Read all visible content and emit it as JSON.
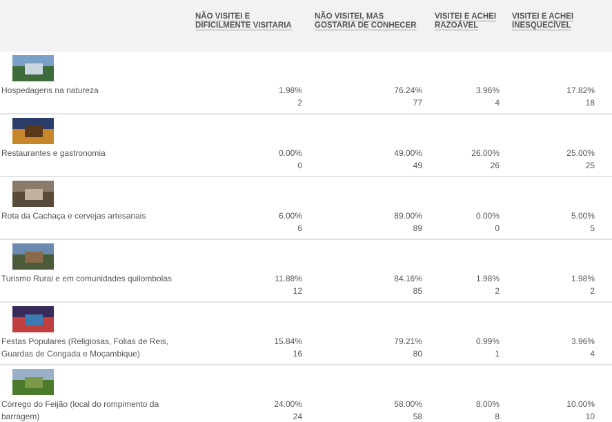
{
  "table": {
    "headers": [
      "NÃO VISITEI E DIFICILMENTE VISITARIA",
      "NÃO VISITEI, MAS GOSTARIA DE CONHECER",
      "VISITEI E ACHEI RAZOÁVEL",
      "VISITEI E ACHEI INESQUECÍVEL"
    ],
    "rows": [
      {
        "label": "Hospedagens na natureza",
        "cells": [
          [
            "1.98%",
            2
          ],
          [
            "76.24%",
            77
          ],
          [
            "3.96%",
            4
          ],
          [
            "17.82%",
            18
          ]
        ]
      },
      {
        "label": "Restaurantes e gastronomia",
        "cells": [
          [
            "0.00%",
            0
          ],
          [
            "49.00%",
            49
          ],
          [
            "26.00%",
            26
          ],
          [
            "25.00%",
            25
          ]
        ]
      },
      {
        "label": "Rota da Cachaça e cervejas artesanais",
        "cells": [
          [
            "6.00%",
            6
          ],
          [
            "89.00%",
            89
          ],
          [
            "0.00%",
            0
          ],
          [
            "5.00%",
            5
          ]
        ]
      },
      {
        "label": "Turismo Rural e em comunidades quilombolas",
        "cells": [
          [
            "11.88%",
            12
          ],
          [
            "84.16%",
            85
          ],
          [
            "1.98%",
            2
          ],
          [
            "1.98%",
            2
          ]
        ]
      },
      {
        "label": "Festas Populares (Religiosas, Folias de Reis, Guardas de Congada e Moçambique)",
        "cells": [
          [
            "15.84%",
            16
          ],
          [
            "79.21%",
            80
          ],
          [
            "0.99%",
            1
          ],
          [
            "3.96%",
            4
          ]
        ]
      },
      {
        "label": "Córrego do Feijão (local do rompimento da barragem)",
        "cells": [
          [
            "24.00%",
            24
          ],
          [
            "58.00%",
            58
          ],
          [
            "8.00%",
            8
          ],
          [
            "10.00%",
            10
          ]
        ]
      }
    ]
  }
}
